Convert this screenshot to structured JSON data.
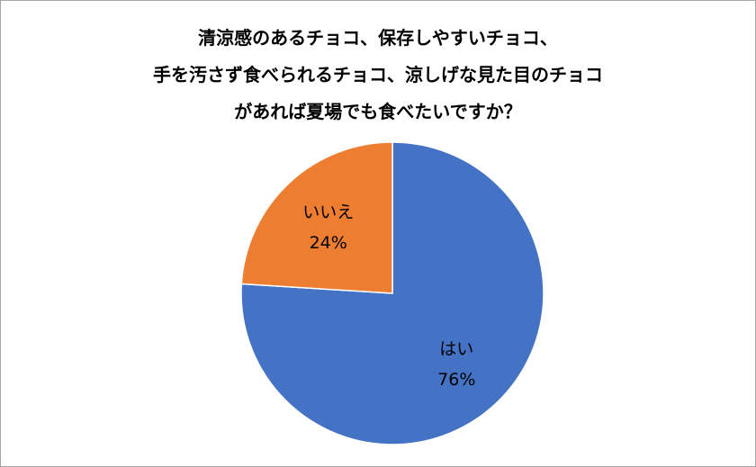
{
  "chart_data": {
    "type": "pie",
    "title_lines": [
      "清涼感のあるチョコ、保存しやすいチョコ、",
      "手を汚さず食べられるチョコ、涼しげな見た目のチョコ",
      "があれば夏場でも食べたいですか？"
    ],
    "slices": [
      {
        "label": "はい",
        "value": 76,
        "value_label": "76%",
        "color": "#4472C4"
      },
      {
        "label": "いいえ",
        "value": 24,
        "value_label": "24%",
        "color": "#ED7D31"
      }
    ],
    "start_angle": "top",
    "direction": "clockwise",
    "legend": "none"
  }
}
